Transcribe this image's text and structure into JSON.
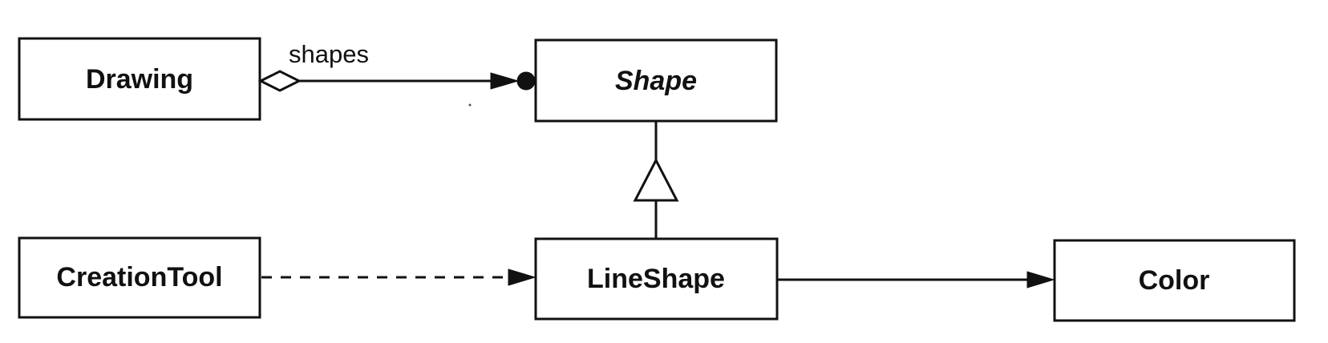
{
  "classes": {
    "drawing": "Drawing",
    "shape": "Shape",
    "creation_tool": "CreationTool",
    "line_shape": "LineShape",
    "color": "Color"
  },
  "relationships": {
    "drawing_shape_role": "shapes"
  },
  "colors": {
    "stroke": "#111111",
    "background": "#ffffff"
  }
}
